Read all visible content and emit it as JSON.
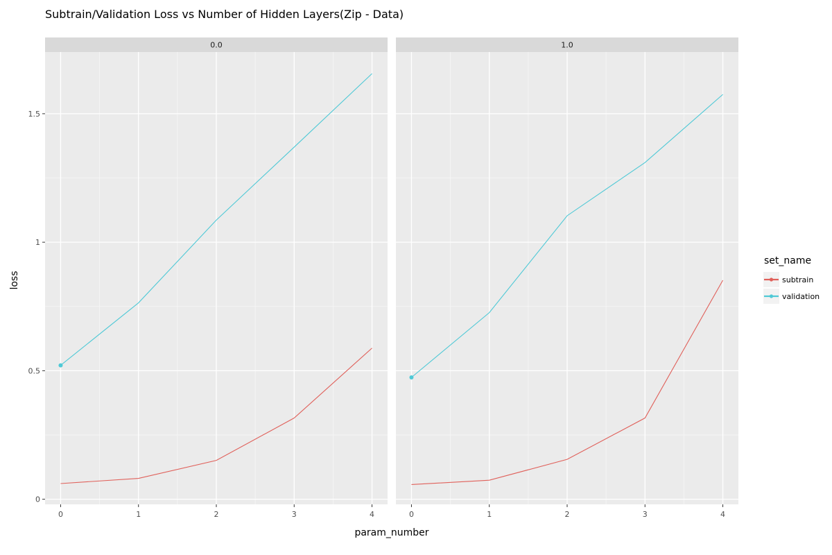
{
  "chart_data": {
    "type": "line",
    "title": "Subtrain/Validation Loss vs Number of Hidden Layers(Zip - Data)",
    "xlabel": "param_number",
    "ylabel": "loss",
    "x_ticks": [
      0,
      1,
      2,
      3,
      4
    ],
    "y_ticks": [
      0,
      0.5,
      1,
      1.5
    ],
    "y_tick_labels": [
      "0",
      "0.5",
      "1",
      "1.5"
    ],
    "xlim": [
      -0.2,
      4.2
    ],
    "ylim": [
      -0.02,
      1.74
    ],
    "grid": true,
    "legend": {
      "title": "set_name",
      "placement": "right",
      "entries": [
        "subtrain",
        "validation"
      ]
    },
    "series_colors": {
      "subtrain": "#E0605A",
      "validation": "#4FC9D6"
    },
    "facets": [
      {
        "label": "0.0",
        "series": [
          {
            "name": "subtrain",
            "x": [
              0,
              1,
              2,
              3,
              4
            ],
            "values": [
              0.061,
              0.081,
              0.151,
              0.316,
              0.588
            ]
          },
          {
            "name": "validation",
            "x": [
              0,
              1,
              2,
              3,
              4
            ],
            "values": [
              0.521,
              0.764,
              1.086,
              1.37,
              1.656
            ]
          }
        ],
        "marked_points": [
          {
            "series": "validation",
            "x": 0,
            "y": 0.521
          }
        ]
      },
      {
        "label": "1.0",
        "series": [
          {
            "name": "subtrain",
            "x": [
              0,
              1,
              2,
              3,
              4
            ],
            "values": [
              0.057,
              0.074,
              0.155,
              0.316,
              0.852
            ]
          },
          {
            "name": "validation",
            "x": [
              0,
              1,
              2,
              3,
              4
            ],
            "values": [
              0.474,
              0.726,
              1.103,
              1.31,
              1.575
            ]
          }
        ],
        "marked_points": [
          {
            "series": "validation",
            "x": 0,
            "y": 0.474
          }
        ]
      }
    ]
  }
}
